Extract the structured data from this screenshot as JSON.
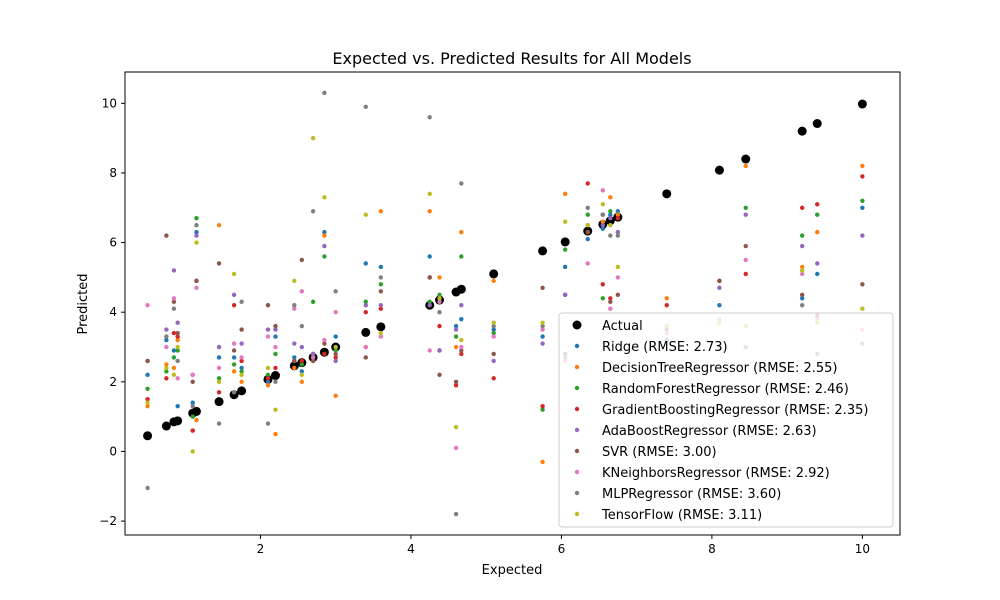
{
  "chart_data": {
    "type": "scatter",
    "title": "Expected vs. Predicted Results for All Models",
    "xlabel": "Expected",
    "ylabel": "Predicted",
    "xlim": [
      0.2,
      10.5
    ],
    "ylim": [
      -2.4,
      10.9
    ],
    "xticks": [
      2,
      4,
      6,
      8,
      10
    ],
    "yticks": [
      -2,
      0,
      2,
      4,
      6,
      8,
      10
    ],
    "x_tick_labels": [
      "2",
      "4",
      "6",
      "8",
      "10"
    ],
    "y_tick_labels": [
      "−2",
      "0",
      "2",
      "4",
      "6",
      "8",
      "10"
    ],
    "grid": false,
    "legend_position": "lower-right",
    "x": [
      0.5,
      0.75,
      0.85,
      0.9,
      1.1,
      1.15,
      1.45,
      1.65,
      1.75,
      2.1,
      2.2,
      2.45,
      2.55,
      2.7,
      2.85,
      3.0,
      3.4,
      3.6,
      4.25,
      4.38,
      4.6,
      4.67,
      5.1,
      5.75,
      6.05,
      6.35,
      6.55,
      6.65,
      6.75,
      7.4,
      8.1,
      8.45,
      9.2,
      9.4,
      10.0
    ],
    "series": [
      {
        "name": "Actual",
        "color": "#000000",
        "values": [
          0.45,
          0.73,
          0.85,
          0.88,
          1.1,
          1.15,
          1.43,
          1.63,
          1.74,
          2.07,
          2.18,
          2.46,
          2.55,
          2.7,
          2.85,
          3.0,
          3.42,
          3.58,
          4.2,
          4.35,
          4.58,
          4.66,
          5.1,
          5.76,
          6.02,
          6.33,
          6.52,
          6.63,
          6.73,
          7.4,
          8.08,
          8.4,
          9.2,
          9.42,
          9.98
        ]
      },
      {
        "name": "Ridge (RMSE: 2.73)",
        "color": "#1f77b4",
        "values": [
          2.2,
          3.2,
          2.9,
          1.3,
          1.4,
          6.3,
          2.7,
          2.7,
          2.4,
          2.0,
          3.3,
          2.7,
          2.3,
          2.8,
          6.3,
          3.3,
          5.4,
          5.3,
          5.6,
          2.9,
          3.6,
          3.8,
          3.5,
          3.3,
          5.3,
          6.1,
          6.4,
          6.8,
          6.9,
          3.2,
          4.2,
          3.0,
          4.4,
          5.1,
          7.0
        ]
      },
      {
        "name": "DecisionTreeRegressor (RMSE: 2.55)",
        "color": "#ff7f0e",
        "values": [
          1.3,
          2.5,
          2.4,
          3.2,
          0.6,
          0.9,
          6.5,
          2.3,
          2.0,
          1.9,
          0.5,
          2.4,
          2.0,
          2.6,
          6.2,
          1.6,
          3.0,
          6.9,
          6.9,
          5.0,
          3.0,
          6.3,
          4.9,
          -0.3,
          7.4,
          6.3,
          6.6,
          7.3,
          6.8,
          4.4,
          3.7,
          8.2,
          5.3,
          6.3,
          8.2
        ]
      },
      {
        "name": "RandomForestRegressor (RMSE: 2.46)",
        "color": "#2ca02c",
        "values": [
          1.8,
          2.3,
          2.7,
          2.9,
          1.0,
          6.7,
          2.1,
          2.5,
          2.3,
          2.2,
          2.8,
          2.6,
          2.5,
          4.3,
          5.6,
          2.9,
          4.3,
          4.8,
          4.3,
          4.5,
          3.3,
          5.6,
          3.4,
          1.2,
          5.8,
          6.8,
          4.4,
          6.9,
          6.3,
          3.6,
          4.9,
          7.0,
          6.2,
          6.8,
          7.2
        ]
      },
      {
        "name": "GradientBoostingRegressor (RMSE: 2.35)",
        "color": "#d62728",
        "values": [
          1.5,
          2.1,
          3.4,
          3.3,
          0.6,
          4.9,
          1.7,
          4.2,
          2.6,
          2.1,
          2.4,
          2.6,
          2.6,
          2.6,
          2.8,
          2.7,
          4.0,
          4.1,
          5.0,
          3.6,
          1.9,
          2.8,
          2.1,
          1.3,
          4.5,
          7.7,
          4.8,
          4.4,
          6.7,
          4.2,
          4.9,
          5.1,
          7.0,
          7.1,
          7.9
        ]
      },
      {
        "name": "AdaBoostRegressor (RMSE: 2.63)",
        "color": "#9467bd",
        "values": [
          2.6,
          3.5,
          5.2,
          3.7,
          2.2,
          6.2,
          3.0,
          4.5,
          3.1,
          3.5,
          3.5,
          3.1,
          3.0,
          2.8,
          5.9,
          2.6,
          4.2,
          4.2,
          4.2,
          2.9,
          3.5,
          4.2,
          2.6,
          3.1,
          4.5,
          6.5,
          6.5,
          6.7,
          6.3,
          3.6,
          4.7,
          6.8,
          5.9,
          5.4,
          6.2
        ]
      },
      {
        "name": "SVR (RMSE: 3.00)",
        "color": "#8c564b",
        "values": [
          2.6,
          6.2,
          4.3,
          3.4,
          2.0,
          4.9,
          5.4,
          2.9,
          3.5,
          4.2,
          3.6,
          2.6,
          5.5,
          2.6,
          3.1,
          2.8,
          2.7,
          4.6,
          5.0,
          2.2,
          2.0,
          2.9,
          2.8,
          4.7,
          2.8,
          6.3,
          6.8,
          4.3,
          4.5,
          3.5,
          4.9,
          5.9,
          4.5,
          3.9,
          4.8
        ]
      },
      {
        "name": "KNeighborsRegressor (RMSE: 2.92)",
        "color": "#e377c2",
        "values": [
          4.2,
          3.0,
          4.4,
          2.1,
          2.2,
          4.7,
          2.4,
          3.1,
          2.7,
          3.3,
          3.0,
          4.1,
          4.6,
          2.7,
          3.2,
          4.0,
          3.0,
          3.3,
          2.9,
          4.3,
          0.1,
          3.0,
          3.3,
          3.5,
          2.6,
          5.4,
          7.5,
          4.1,
          5.0,
          3.4,
          3.8,
          5.5,
          5.1,
          3.8,
          3.5
        ]
      },
      {
        "name": "MLPRegressor (RMSE: 3.60)",
        "color": "#7f7f7f",
        "values": [
          -1.05,
          3.3,
          4.1,
          2.6,
          1.3,
          6.5,
          0.8,
          1.7,
          4.3,
          0.8,
          2.0,
          4.2,
          3.6,
          6.9,
          10.3,
          4.6,
          9.9,
          5.0,
          9.6,
          4.0,
          -1.8,
          7.7,
          3.6,
          3.6,
          2.7,
          7.0,
          6.8,
          6.2,
          6.2,
          3.6,
          3.0,
          3.0,
          4.2,
          2.8,
          3.1
        ]
      },
      {
        "name": "TensorFlow (RMSE: 3.11)",
        "color": "#bcbd22",
        "values": [
          1.4,
          2.4,
          2.2,
          3.0,
          0.0,
          6.0,
          2.0,
          5.1,
          2.2,
          2.4,
          1.2,
          4.9,
          2.2,
          9.0,
          7.3,
          3.0,
          6.8,
          3.4,
          7.4,
          4.4,
          0.7,
          3.2,
          3.7,
          3.7,
          6.6,
          6.5,
          7.1,
          6.5,
          5.3,
          3.6,
          3.7,
          3.6,
          5.2,
          3.7,
          4.1
        ]
      }
    ]
  }
}
